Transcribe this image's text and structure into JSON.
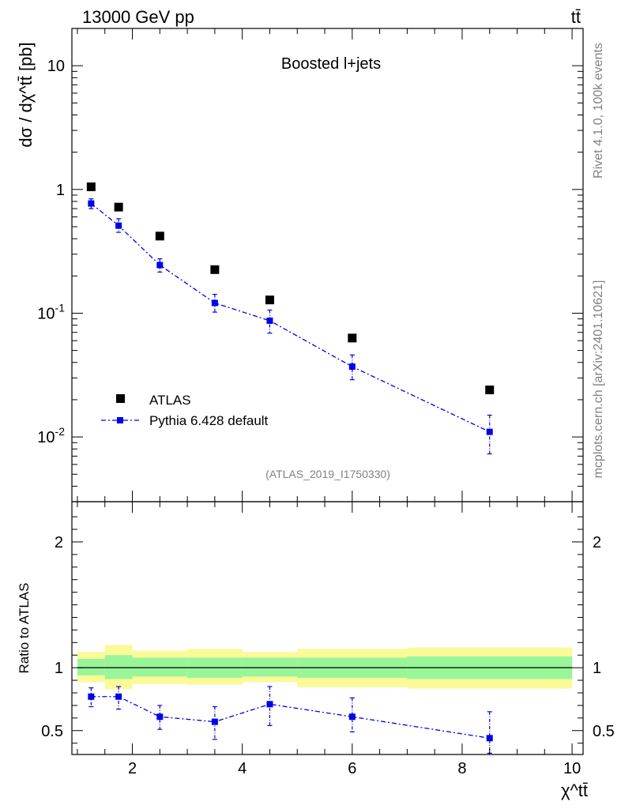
{
  "header": {
    "energy_label": "13000 GeV pp",
    "process_label": "tt̄"
  },
  "side": {
    "rivet_label": "Rivet 4.1.0,  100k events",
    "mcplots_label": "mcplots.cern.ch [arXiv:2401.10621]"
  },
  "colors": {
    "atlas": "#000000",
    "pythia": "#0000e6",
    "band_inner": "#98f598",
    "band_outer": "#fafa98"
  },
  "chart_data": [
    {
      "type": "scatter",
      "title": "Boosted l+jets",
      "analysis_label": "(ATLAS_2019_I1750330)",
      "ylabel": "dσ / dχ^tt̄ [pb]",
      "xlabel": "χ^tt̄",
      "yscale": "log",
      "xlim": [
        0.9,
        10.2
      ],
      "ylim": [
        0.003,
        20
      ],
      "ytick_labels": [
        "10^-2",
        "10^-1",
        "1",
        "10"
      ],
      "xtick_labels": [
        "2",
        "4",
        "6",
        "8",
        "10"
      ],
      "legend": {
        "placement": "bottom-left",
        "entries": [
          "ATLAS",
          "Pythia 6.428 default"
        ]
      },
      "series": [
        {
          "name": "ATLAS",
          "style": "square-marker",
          "x": [
            1.25,
            1.75,
            2.5,
            3.5,
            4.5,
            6.0,
            8.5
          ],
          "y": [
            1.05,
            0.72,
            0.42,
            0.225,
            0.128,
            0.063,
            0.024
          ]
        },
        {
          "name": "Pythia 6.428 default",
          "style": "dash-dot-line-with-markers",
          "x": [
            1.25,
            1.75,
            2.5,
            3.5,
            4.5,
            6.0,
            8.5
          ],
          "y": [
            0.77,
            0.51,
            0.245,
            0.121,
            0.087,
            0.037,
            0.011
          ],
          "y_err_low": [
            0.7,
            0.45,
            0.215,
            0.102,
            0.069,
            0.029,
            0.0073
          ],
          "y_err_high": [
            0.84,
            0.58,
            0.275,
            0.142,
            0.106,
            0.046,
            0.015
          ]
        }
      ]
    },
    {
      "type": "scatter",
      "ylabel": "Ratio to ATLAS",
      "xlim": [
        0.9,
        10.2
      ],
      "ylim": [
        0.31,
        2.32
      ],
      "ytick_labels": [
        "0.5",
        "1",
        "2"
      ],
      "reference_line": 1.0,
      "bands": {
        "edges": [
          1.0,
          1.5,
          2.0,
          3.0,
          4.0,
          5.0,
          7.0,
          10.0
        ],
        "inner_low": [
          0.94,
          0.91,
          0.93,
          0.92,
          0.93,
          0.92,
          0.91
        ],
        "inner_high": [
          1.07,
          1.1,
          1.08,
          1.08,
          1.08,
          1.08,
          1.09
        ],
        "outer_low": [
          0.885,
          0.83,
          0.87,
          0.865,
          0.885,
          0.845,
          0.835
        ],
        "outer_high": [
          1.125,
          1.18,
          1.135,
          1.15,
          1.125,
          1.15,
          1.16
        ]
      },
      "series": [
        {
          "name": "Pythia 6.428 default",
          "x": [
            1.25,
            1.75,
            2.5,
            3.5,
            4.5,
            6.0,
            8.5
          ],
          "y": [
            0.77,
            0.77,
            0.61,
            0.57,
            0.71,
            0.61,
            0.44
          ],
          "y_err_low": [
            0.69,
            0.67,
            0.51,
            0.43,
            0.54,
            0.49,
            0.32
          ],
          "y_err_high": [
            0.84,
            0.85,
            0.7,
            0.69,
            0.85,
            0.76,
            0.65
          ]
        }
      ]
    }
  ]
}
